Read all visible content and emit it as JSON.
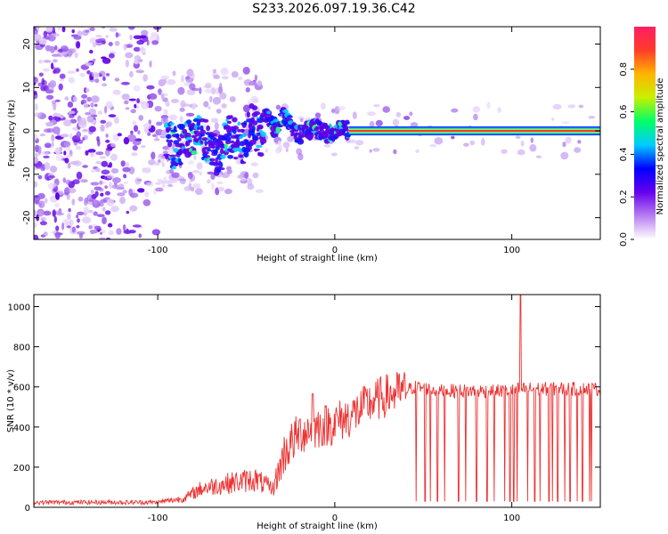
{
  "figure": {
    "title": "S233.2026.097.19.36.C42"
  },
  "chart_data": [
    {
      "type": "heatmap",
      "xlabel": "Height of straight line (km)",
      "ylabel": "Frequency (Hz)",
      "xlim": [
        -170,
        150
      ],
      "ylim": [
        -25,
        24
      ],
      "xticks": [
        -100,
        0,
        100
      ],
      "yticks": [
        -20,
        -10,
        0,
        10,
        20
      ],
      "colorbar": {
        "label": "Normalized spectral amplitude",
        "range": [
          0.0,
          1.0
        ],
        "ticks": [
          0.0,
          0.2,
          0.4,
          0.6,
          0.8
        ],
        "tick_labels": [
          "0.0",
          "0.2",
          "0.4",
          "0.6",
          "0.8"
        ],
        "colors": [
          "#ffffff",
          "#b87ef0",
          "#6600ee",
          "#0000ff",
          "#00ccff",
          "#00ff66",
          "#c8f000",
          "#ffb400",
          "#ff3c28",
          "#ff1e64"
        ]
      },
      "ridge_frequency_hz": 0,
      "ridge_start_km": 8,
      "grid": false
    },
    {
      "type": "line",
      "xlabel": "Height of straight line (km)",
      "ylabel": "SNR (10 * v/v)",
      "xlim": [
        -170,
        150
      ],
      "ylim": [
        0,
        1060
      ],
      "xticks": [
        -100,
        0,
        100
      ],
      "yticks": [
        0,
        200,
        400,
        600,
        800,
        1000
      ],
      "color": "#ee3030",
      "profile": {
        "x": [
          -170,
          -100,
          -85,
          -75,
          -60,
          -45,
          -35,
          -28,
          -20,
          -10,
          0,
          10,
          20,
          30,
          40,
          45,
          60,
          80,
          100,
          105,
          110,
          150
        ],
        "y": [
          25,
          25,
          45,
          95,
          120,
          140,
          90,
          280,
          370,
          400,
          420,
          460,
          520,
          560,
          580,
          600,
          580,
          580,
          580,
          590,
          590,
          590
        ]
      },
      "spikes": [
        {
          "x": -12.5,
          "y": 565
        },
        {
          "x": 105,
          "y": 1060
        }
      ],
      "dropouts_x": [
        46,
        51,
        54,
        58,
        62,
        70,
        74,
        80,
        86,
        90,
        96,
        99,
        101,
        103,
        109,
        113,
        116,
        121,
        123,
        126,
        130,
        133,
        137,
        140,
        144,
        145
      ],
      "grid": false
    }
  ]
}
